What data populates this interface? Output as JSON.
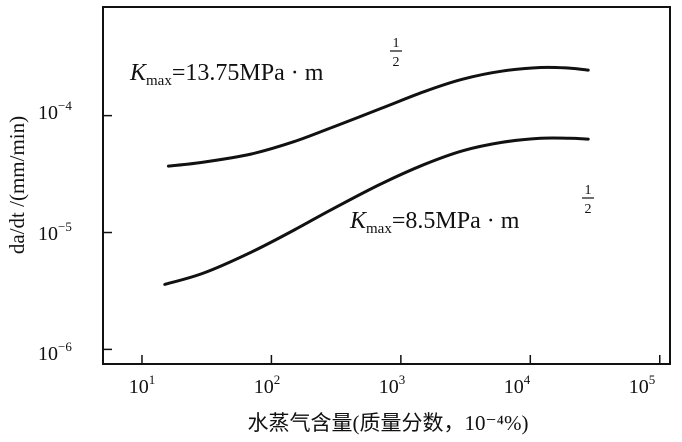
{
  "chart_data": {
    "type": "line",
    "title": "",
    "xlabel": "水蒸气含量(质量分数，10⁻⁴%)",
    "ylabel": "da/dt /(mm/min)",
    "x_scale": "log",
    "y_scale": "log",
    "xlim": [
      5,
      120000
    ],
    "ylim": [
      7.5e-07,
      0.00085
    ],
    "x_ticks": [
      {
        "value": 10,
        "base": "10",
        "exp": "1"
      },
      {
        "value": 100,
        "base": "10",
        "exp": "2"
      },
      {
        "value": 1000,
        "base": "10",
        "exp": "3"
      },
      {
        "value": 10000,
        "base": "10",
        "exp": "4"
      },
      {
        "value": 100000,
        "base": "10",
        "exp": "5"
      }
    ],
    "y_ticks": [
      {
        "value": 1e-06,
        "base": "10",
        "exp": "−6"
      },
      {
        "value": 1e-05,
        "base": "10",
        "exp": "−5"
      },
      {
        "value": 0.0001,
        "base": "10",
        "exp": "−4"
      }
    ],
    "series": [
      {
        "name": "Kmax=13.75MPa·m^(1/2)",
        "label": {
          "k": "K",
          "sub": "max",
          "text": "=13.75MPa · m",
          "num": "1",
          "den": "2"
        },
        "x": [
          16,
          30,
          70,
          150,
          300,
          700,
          1500,
          3000,
          6000,
          12000,
          20000,
          28000
        ],
        "y": [
          3.7e-05,
          4e-05,
          4.7e-05,
          6e-05,
          8e-05,
          0.000115,
          0.00016,
          0.000205,
          0.00024,
          0.000258,
          0.000255,
          0.000245
        ]
      },
      {
        "name": "Kmax=8.5MPa·m^(1/2)",
        "label": {
          "k": "K",
          "sub": "max",
          "text": "=8.5MPa · m",
          "num": "1",
          "den": "2"
        },
        "x": [
          15,
          30,
          70,
          150,
          300,
          700,
          1500,
          3000,
          6000,
          12000,
          20000,
          28000
        ],
        "y": [
          3.6e-06,
          4.5e-06,
          6.8e-06,
          1.05e-05,
          1.6e-05,
          2.6e-05,
          3.8e-05,
          5e-05,
          5.9e-05,
          6.4e-05,
          6.4e-05,
          6.3e-05
        ]
      }
    ]
  }
}
